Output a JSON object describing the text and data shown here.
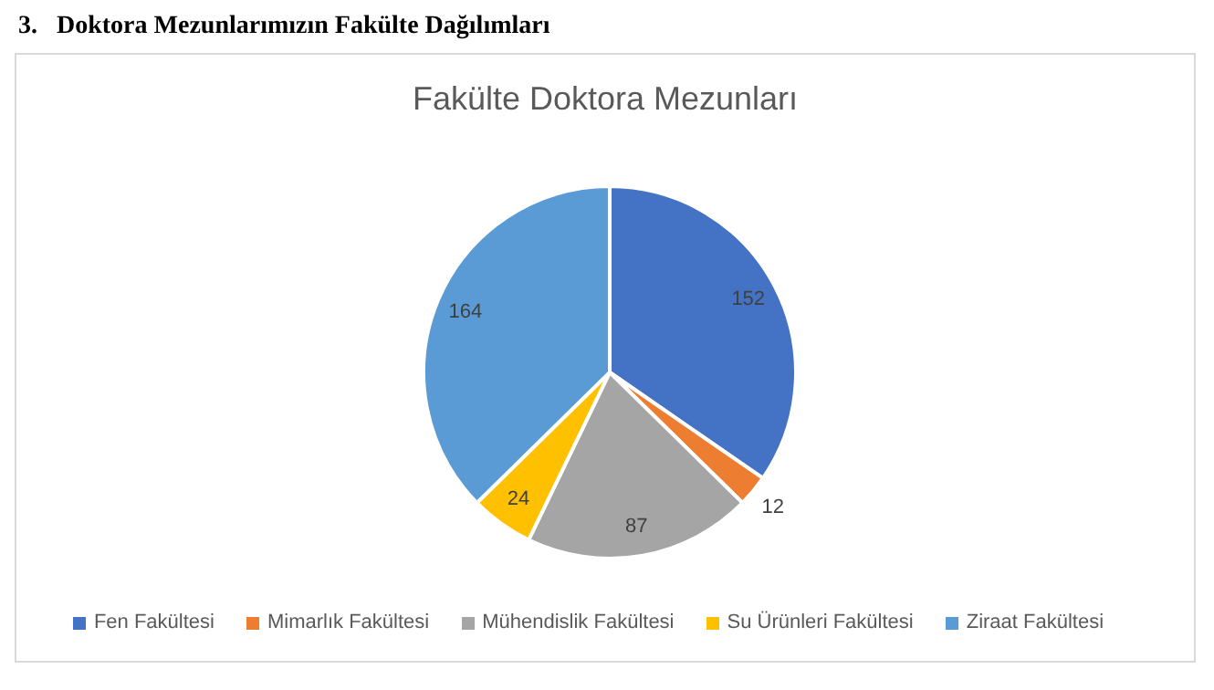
{
  "chart_data": {
    "type": "pie",
    "title": "3.   Doktora Mezunlarımızın Fakülte Dağılımları",
    "subtitle": "Fakülte Doktora Mezunları",
    "categories": [
      "Fen Fakültesi",
      "Mimarlık Fakültesi",
      "Mühendislik Fakültesi",
      "Su Ürünleri Fakültesi",
      "Ziraat Fakültesi"
    ],
    "values": [
      152,
      12,
      87,
      24,
      164
    ],
    "colors": [
      "#4472c4",
      "#ed7d31",
      "#a5a5a5",
      "#ffc000",
      "#5b9bd5"
    ],
    "data_labels": true,
    "legend": "bottom"
  }
}
